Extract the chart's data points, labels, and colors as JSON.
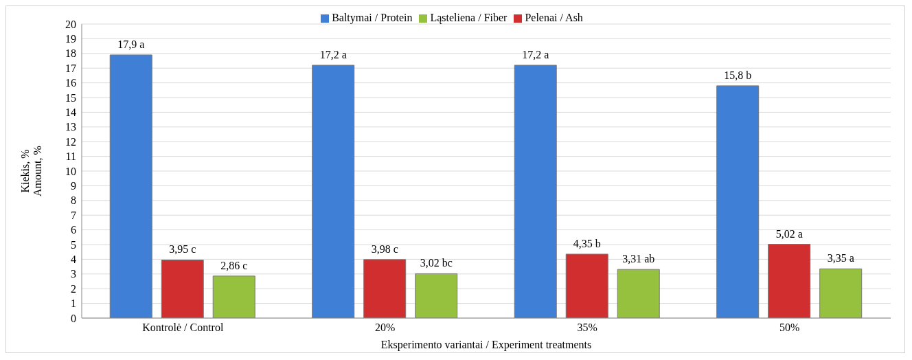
{
  "chart_data": {
    "type": "bar",
    "xlabel": "Eksperimento  variantai / Experiment treatments",
    "ylabel": "Kiekis, %\nAmount, %",
    "categories": [
      "Kontrolė / Control",
      "20%",
      "35%",
      "50%"
    ],
    "series": [
      {
        "name": "Baltymai / Protein",
        "color": "#3f7fd6",
        "values": [
          17.9,
          17.2,
          17.2,
          15.8
        ],
        "value_labels": [
          "17,9 a",
          "17,2 a",
          "17,2 a",
          "15,8 b"
        ]
      },
      {
        "name": "Pelenai / Ash",
        "color": "#d12f2f",
        "values": [
          3.95,
          3.98,
          4.35,
          5.02
        ],
        "value_labels": [
          "3,95 c",
          "3,98 c",
          "4,35 b",
          "5,02 a"
        ]
      },
      {
        "name": "Ląsteliena / Fiber",
        "color": "#96c13f",
        "values": [
          2.86,
          3.02,
          3.31,
          3.35
        ],
        "value_labels": [
          "2,86 c",
          "3,02 bc",
          "3,31 ab",
          "3,35 a"
        ]
      }
    ],
    "ylim": [
      0,
      20
    ],
    "yticks": [
      0,
      1,
      2,
      3,
      4,
      5,
      6,
      7,
      8,
      9,
      10,
      11,
      12,
      13,
      14,
      15,
      16,
      17,
      18,
      19,
      20
    ],
    "grid": "y",
    "legend": "top"
  }
}
